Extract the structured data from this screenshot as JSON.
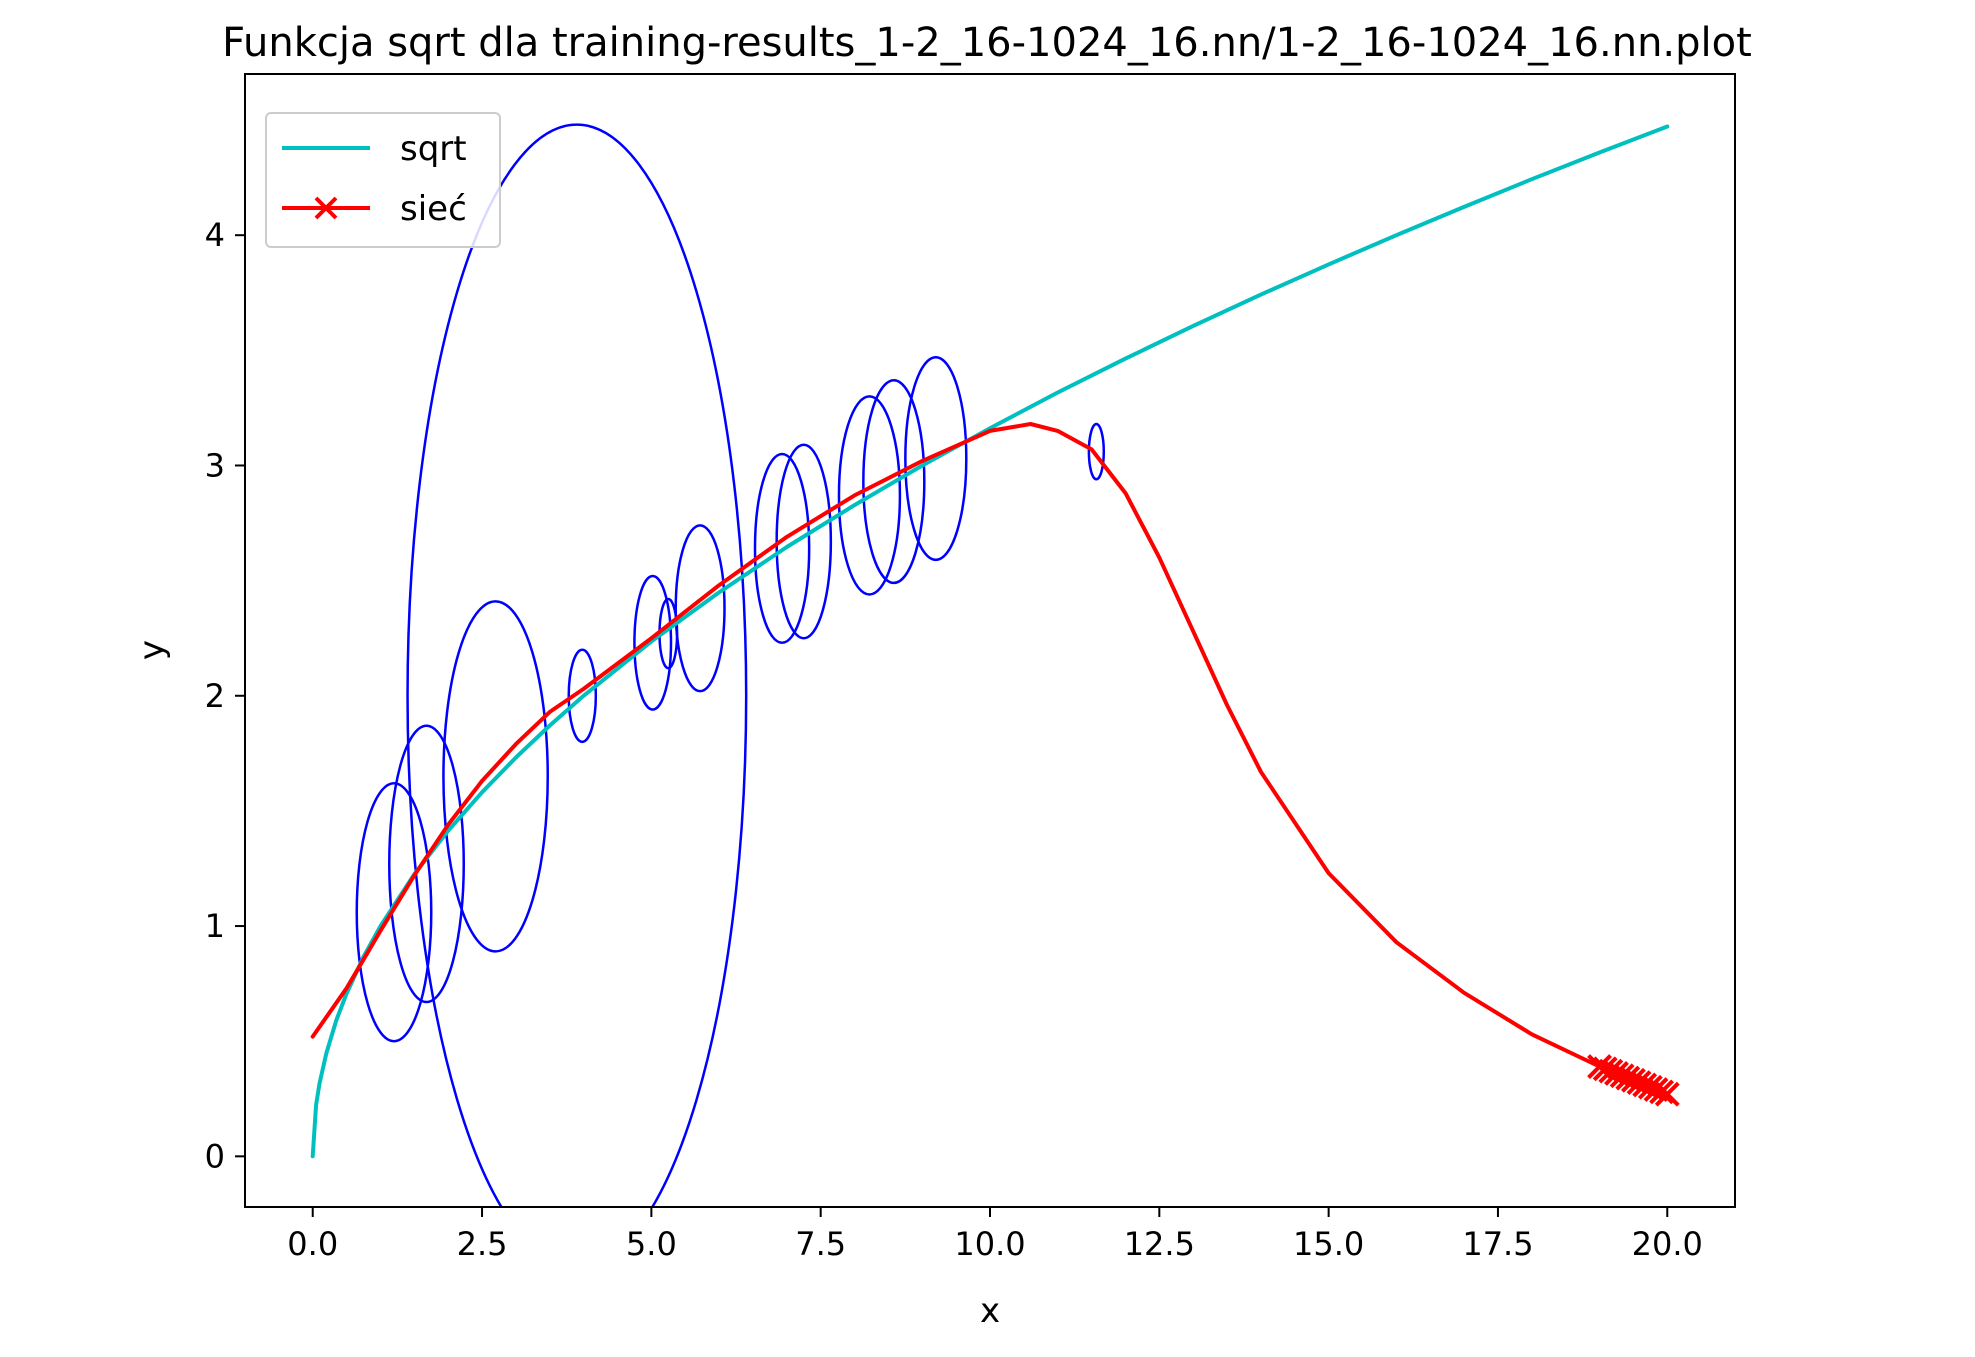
{
  "chart_data": {
    "type": "line",
    "title": "Funkcja sqrt dla training-results_1-2_16-1024_16.nn/1-2_16-1024_16.nn.plot",
    "xlabel": "x",
    "ylabel": "y",
    "xlim": [
      -1.0,
      21.0
    ],
    "ylim": [
      -0.22,
      4.7
    ],
    "x_ticks": [
      0.0,
      2.5,
      5.0,
      7.5,
      10.0,
      12.5,
      15.0,
      17.5,
      20.0
    ],
    "x_tick_labels": [
      "0.0",
      "2.5",
      "5.0",
      "7.5",
      "10.0",
      "12.5",
      "15.0",
      "17.5",
      "20.0"
    ],
    "y_ticks": [
      0,
      1,
      2,
      3,
      4
    ],
    "y_tick_labels": [
      "0",
      "1",
      "2",
      "3",
      "4"
    ],
    "grid": false,
    "legend_position": "upper-left",
    "series": [
      {
        "name": "sqrt",
        "color": "#00bfbf",
        "marker": "none",
        "x": [
          0,
          0.05,
          0.1,
          0.2,
          0.35,
          0.5,
          0.75,
          1,
          1.5,
          2,
          2.5,
          3,
          3.5,
          4,
          5,
          6,
          7,
          8,
          9,
          10,
          11,
          12,
          13,
          14,
          15,
          16,
          17,
          18,
          19,
          20
        ],
        "y": [
          0,
          0.224,
          0.316,
          0.447,
          0.592,
          0.707,
          0.866,
          1.0,
          1.225,
          1.414,
          1.581,
          1.732,
          1.871,
          2.0,
          2.236,
          2.449,
          2.646,
          2.828,
          3.0,
          3.162,
          3.317,
          3.464,
          3.606,
          3.742,
          3.873,
          4.0,
          4.123,
          4.243,
          4.359,
          4.472
        ]
      },
      {
        "name": "sieć",
        "color": "#ff0000",
        "marker": "x",
        "x": [
          0,
          0.5,
          1,
          1.5,
          2,
          2.5,
          3,
          3.5,
          4,
          5,
          6,
          7,
          8,
          9,
          10,
          10.6,
          11,
          11.5,
          12,
          12.5,
          13,
          13.5,
          14,
          15,
          16,
          17,
          18,
          19,
          19.5,
          20
        ],
        "y": [
          0.52,
          0.73,
          0.98,
          1.22,
          1.44,
          1.63,
          1.79,
          1.93,
          2.03,
          2.25,
          2.48,
          2.69,
          2.87,
          3.02,
          3.15,
          3.18,
          3.15,
          3.07,
          2.88,
          2.6,
          2.28,
          1.96,
          1.67,
          1.23,
          0.93,
          0.71,
          0.53,
          0.39,
          0.33,
          0.27
        ]
      }
    ],
    "ellipses": {
      "color": "#0000ff",
      "items": [
        {
          "cx": 1.2,
          "cy": 1.06,
          "rx": 0.55,
          "ry": 0.56
        },
        {
          "cx": 1.68,
          "cy": 1.27,
          "rx": 0.55,
          "ry": 0.6
        },
        {
          "cx": 2.7,
          "cy": 1.65,
          "rx": 0.77,
          "ry": 0.76
        },
        {
          "cx": 3.9,
          "cy": 2.0,
          "rx": 2.5,
          "ry": 2.48
        },
        {
          "cx": 3.98,
          "cy": 2.0,
          "rx": 0.2,
          "ry": 0.2
        },
        {
          "cx": 5.02,
          "cy": 2.23,
          "rx": 0.27,
          "ry": 0.29
        },
        {
          "cx": 5.25,
          "cy": 2.27,
          "rx": 0.13,
          "ry": 0.15
        },
        {
          "cx": 5.72,
          "cy": 2.38,
          "rx": 0.36,
          "ry": 0.36
        },
        {
          "cx": 6.93,
          "cy": 2.64,
          "rx": 0.4,
          "ry": 0.41
        },
        {
          "cx": 7.25,
          "cy": 2.67,
          "rx": 0.4,
          "ry": 0.42
        },
        {
          "cx": 8.22,
          "cy": 2.87,
          "rx": 0.45,
          "ry": 0.43
        },
        {
          "cx": 8.58,
          "cy": 2.93,
          "rx": 0.45,
          "ry": 0.44
        },
        {
          "cx": 9.2,
          "cy": 3.03,
          "rx": 0.45,
          "ry": 0.44
        },
        {
          "cx": 11.57,
          "cy": 3.06,
          "rx": 0.11,
          "ry": 0.12
        }
      ]
    }
  }
}
